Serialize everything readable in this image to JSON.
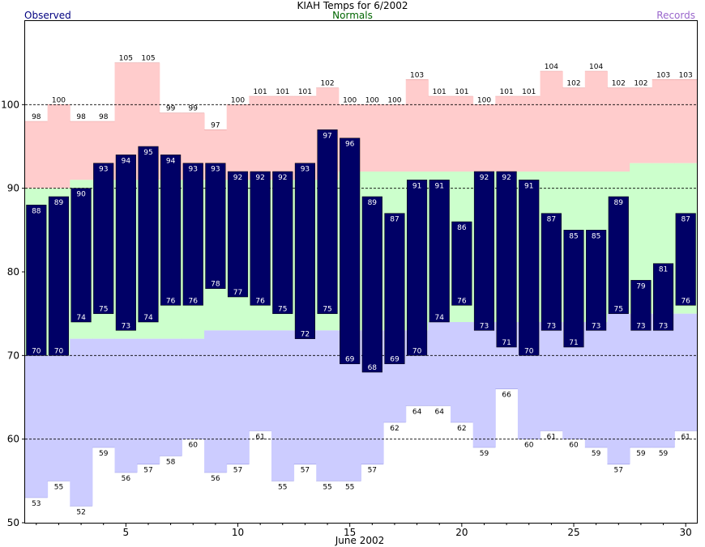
{
  "header": {
    "title": "KIAH Temps for 6/2002",
    "observed_label": "Observed",
    "normals_label": "Normals",
    "records_label": "Records"
  },
  "colors": {
    "observed": "#000066",
    "normal_high_band": "#ffcccc",
    "normal_range_band": "#ccffcc",
    "normal_low_band": "#ccccff",
    "observed_label": "#000080",
    "normals_label": "#006600",
    "records_label": "#9966cc"
  },
  "chart_data": {
    "type": "bar",
    "title": "KIAH Temps for 6/2002",
    "xlabel": "June 2002",
    "ylabel": "",
    "xlim": [
      0.5,
      30.5
    ],
    "ylim": [
      50,
      110
    ],
    "x_ticks": [
      5,
      10,
      15,
      20,
      25,
      30
    ],
    "y_ticks": [
      50,
      60,
      70,
      80,
      90,
      100
    ],
    "grid": "dashed horizontal at 60, 70, 90, 100",
    "legend": "top: Observed (left), Normals (center), Records (right)",
    "days": [
      1,
      2,
      3,
      4,
      5,
      6,
      7,
      8,
      9,
      10,
      11,
      12,
      13,
      14,
      15,
      16,
      17,
      18,
      19,
      20,
      21,
      22,
      23,
      24,
      25,
      26,
      27,
      28,
      29,
      30
    ],
    "series": [
      {
        "name": "Observed",
        "high": [
          88,
          89,
          90,
          93,
          94,
          95,
          94,
          93,
          93,
          92,
          92,
          92,
          93,
          97,
          96,
          89,
          87,
          91,
          91,
          86,
          92,
          92,
          91,
          87,
          85,
          85,
          89,
          79,
          81,
          87
        ],
        "low": [
          70,
          70,
          74,
          75,
          73,
          74,
          76,
          76,
          78,
          77,
          76,
          75,
          72,
          75,
          69,
          68,
          69,
          70,
          74,
          76,
          73,
          71,
          70,
          73,
          71,
          73,
          75,
          73,
          73,
          76
        ]
      },
      {
        "name": "Normals",
        "high": [
          90,
          90,
          91,
          91,
          91,
          91,
          91,
          91,
          91,
          91,
          91,
          91,
          91,
          91,
          92,
          92,
          92,
          92,
          92,
          92,
          92,
          92,
          92,
          92,
          92,
          92,
          92,
          93,
          93,
          93
        ],
        "low": [
          70,
          70,
          72,
          72,
          72,
          72,
          72,
          72,
          73,
          73,
          73,
          73,
          73,
          73,
          73,
          73,
          73,
          73,
          74,
          74,
          74,
          74,
          74,
          74,
          74,
          74,
          75,
          75,
          75,
          75
        ]
      },
      {
        "name": "Records",
        "high": [
          98,
          100,
          98,
          98,
          105,
          105,
          99,
          99,
          97,
          100,
          101,
          101,
          101,
          102,
          100,
          100,
          100,
          103,
          101,
          101,
          100,
          101,
          101,
          104,
          102,
          104,
          102,
          102,
          103,
          103
        ],
        "low": [
          53,
          55,
          52,
          59,
          56,
          57,
          58,
          60,
          56,
          57,
          61,
          55,
          57,
          55,
          55,
          57,
          62,
          64,
          64,
          62,
          59,
          66,
          60,
          61,
          60,
          59,
          57,
          59,
          59,
          61
        ]
      }
    ]
  }
}
